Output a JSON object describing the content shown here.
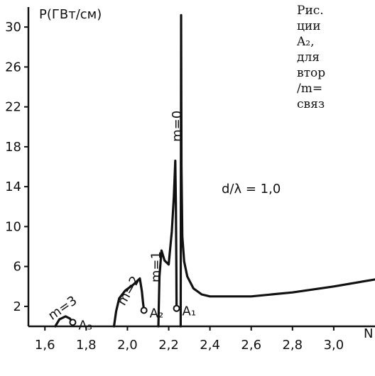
{
  "caption_lines": [
    "Рис.",
    "ции",
    "A₂,",
    "для",
    "втор",
    "/m=",
    "связ"
  ],
  "chart_data": {
    "type": "line",
    "ylabel": "P(ГВт/см)",
    "xlabel": "N",
    "xlim": [
      1.52,
      3.2
    ],
    "ylim": [
      0,
      32
    ],
    "x_ticks": [
      1.6,
      1.8,
      2.0,
      2.2,
      2.4,
      2.6,
      2.8,
      3.0
    ],
    "x_tick_labels": [
      "1,6",
      "1,8",
      "2,0",
      "2,2",
      "2,4",
      "2,6",
      "2,8",
      "3,0"
    ],
    "y_ticks": [
      2,
      6,
      10,
      14,
      18,
      22,
      26,
      30
    ],
    "y_tick_labels": [
      "2",
      "6",
      "10",
      "14",
      "18",
      "22",
      "26",
      "30"
    ],
    "param_label": "d/λ = 1,0",
    "series": [
      {
        "name": "m=3",
        "x": [
          1.65,
          1.67,
          1.7,
          1.72,
          1.735
        ],
        "y": [
          0,
          0.7,
          1.0,
          0.8,
          0.4
        ],
        "end_point": {
          "x": 1.735,
          "y": 0.4,
          "label": "A₃"
        }
      },
      {
        "name": "m=2",
        "x": [
          1.935,
          1.945,
          1.96,
          1.99,
          2.03,
          2.06,
          2.07,
          2.075,
          2.08
        ],
        "y": [
          0,
          1.5,
          2.8,
          3.6,
          4.2,
          4.8,
          3.5,
          2.5,
          1.6
        ],
        "end_point": {
          "x": 2.08,
          "y": 1.6,
          "label": "A₂"
        }
      },
      {
        "name": "m=1",
        "x": [
          2.15,
          2.155,
          2.165,
          2.18,
          2.2,
          2.215,
          2.225,
          2.232,
          2.235,
          2.237,
          2.238
        ],
        "y": [
          0,
          5.0,
          7.6,
          6.6,
          6.2,
          9.5,
          13.0,
          16.6,
          12.0,
          6.0,
          1.8
        ],
        "end_point": {
          "x": 2.238,
          "y": 1.8,
          "label": "A₁"
        }
      },
      {
        "name": "m=0",
        "x": [
          2.258,
          2.26,
          2.262,
          2.266,
          2.275,
          2.29,
          2.32,
          2.36,
          2.4,
          2.6,
          2.8,
          3.0,
          3.2
        ],
        "y": [
          0,
          31.2,
          16.0,
          9.0,
          6.5,
          5.0,
          3.8,
          3.2,
          3.0,
          3.0,
          3.4,
          4.0,
          4.7
        ]
      }
    ],
    "grid": false
  }
}
